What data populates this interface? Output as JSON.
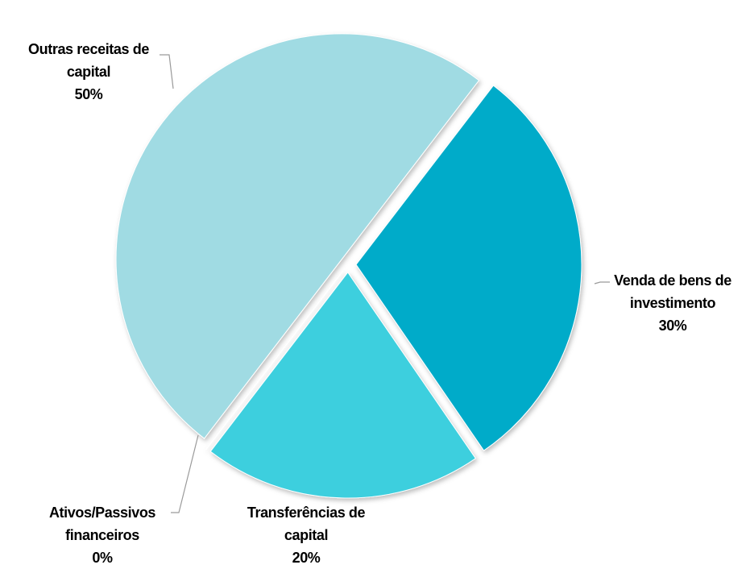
{
  "chart_data": {
    "type": "pie",
    "categories": [
      "Venda de bens de investimento",
      "Transferências de capital",
      "Ativos/Passivos financeiros",
      "Outras receitas de capital"
    ],
    "values": [
      30,
      20,
      0,
      50
    ],
    "value_labels": [
      "30%",
      "20%",
      "0%",
      "50%"
    ],
    "colors": [
      "#06abc9",
      "#3ccfde",
      "#7fd6e0",
      "#a0dbe3"
    ]
  }
}
